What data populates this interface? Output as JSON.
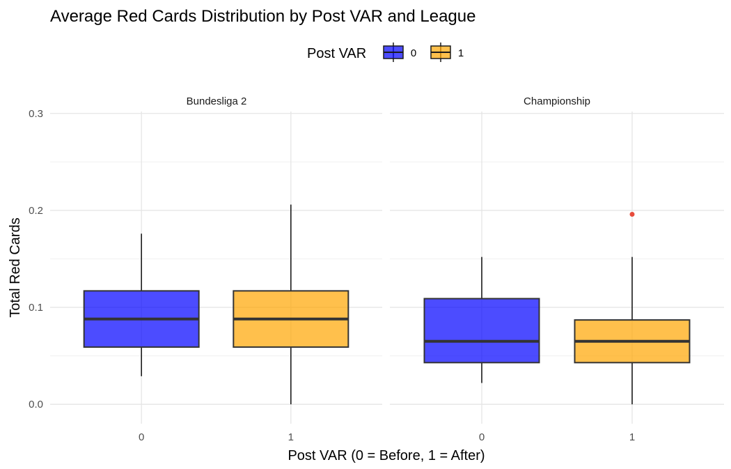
{
  "chart_data": {
    "type": "boxplot",
    "title": "Average Red Cards Distribution by Post VAR and League",
    "xlabel": "Post VAR (0 = Before, 1 = After)",
    "ylabel": "Total Red Cards",
    "ylim": [
      -0.02,
      0.302
    ],
    "y_ticks": [
      0.0,
      0.1,
      0.2,
      0.3
    ],
    "y_tick_labels": [
      "0.0",
      "0.1",
      "0.2",
      "0.3"
    ],
    "categories": [
      "0",
      "1"
    ],
    "grid": true,
    "legend": {
      "title": "Post VAR",
      "placement": "top",
      "items": [
        {
          "label": "0",
          "color": "#0000ff"
        },
        {
          "label": "1",
          "color": "#ffa500"
        }
      ]
    },
    "outlier_color": "#e74c3c",
    "panels": [
      {
        "name": "Bundesliga 2",
        "boxes": [
          {
            "category": "0",
            "whisker_low": 0.029,
            "q1": 0.059,
            "median": 0.088,
            "q3": 0.117,
            "whisker_high": 0.176,
            "outliers": []
          },
          {
            "category": "1",
            "whisker_low": 0.0,
            "q1": 0.059,
            "median": 0.088,
            "q3": 0.117,
            "whisker_high": 0.206,
            "outliers": []
          }
        ]
      },
      {
        "name": "Championship",
        "boxes": [
          {
            "category": "0",
            "whisker_low": 0.022,
            "q1": 0.043,
            "median": 0.065,
            "q3": 0.109,
            "whisker_high": 0.152,
            "outliers": []
          },
          {
            "category": "1",
            "whisker_low": 0.0,
            "q1": 0.043,
            "median": 0.065,
            "q3": 0.087,
            "whisker_high": 0.152,
            "outliers": [
              0.196
            ]
          }
        ]
      }
    ]
  }
}
